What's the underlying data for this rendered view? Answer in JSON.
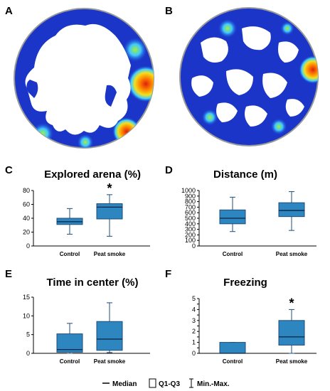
{
  "panels": {
    "heatmap_a": {
      "letter": "A"
    },
    "heatmap_b": {
      "letter": "B"
    }
  },
  "colors": {
    "box_fill": "#2e86c1",
    "box_stroke": "#1f4e79",
    "heat_low": "#1530c9",
    "heat_mid": "#40c8ff",
    "heat_high": "#e02010"
  },
  "chart_data": [
    {
      "letter": "C",
      "type": "box",
      "title": "Explored arena (%)",
      "categories": [
        "Control",
        "Peat smoke"
      ],
      "yticks": [
        0,
        20,
        40,
        60,
        80
      ],
      "ylim": [
        0,
        80
      ],
      "boxes": [
        {
          "min": 17,
          "q1": 31,
          "median": 35,
          "q3": 40,
          "max": 54,
          "significant": false
        },
        {
          "min": 14,
          "q1": 39,
          "median": 56,
          "q3": 61,
          "max": 74,
          "significant": true
        }
      ],
      "significance_mark": "*"
    },
    {
      "letter": "D",
      "type": "box",
      "title": "Distance (m)",
      "categories": [
        "Control",
        "Peat smoke"
      ],
      "yticks": [
        0,
        100,
        200,
        300,
        400,
        500,
        600,
        700,
        800,
        900,
        1000
      ],
      "ylim": [
        0,
        1000
      ],
      "boxes": [
        {
          "min": 260,
          "q1": 400,
          "median": 500,
          "q3": 650,
          "max": 880,
          "significant": false
        },
        {
          "min": 280,
          "q1": 530,
          "median": 640,
          "q3": 780,
          "max": 980,
          "significant": false
        }
      ]
    },
    {
      "letter": "E",
      "type": "box",
      "title": "Time in center (%)",
      "categories": [
        "Control",
        "Peat smoke"
      ],
      "yticks": [
        0,
        5,
        10,
        15
      ],
      "ylim": [
        0,
        15
      ],
      "boxes": [
        {
          "min": 0,
          "q1": 0.3,
          "median": 1,
          "q3": 5.2,
          "max": 8,
          "significant": false
        },
        {
          "min": 0.2,
          "q1": 0.8,
          "median": 3.8,
          "q3": 8.5,
          "max": 13.5,
          "significant": false
        }
      ]
    },
    {
      "letter": "F",
      "type": "box",
      "title": "Freezing",
      "categories": [
        "Control",
        "Peat smoke"
      ],
      "yticks": [
        0,
        0.5,
        1,
        1.5,
        2,
        2.5,
        3,
        3.5,
        4,
        4.5,
        5
      ],
      "ytick_labels": [
        "0",
        "",
        "1",
        "",
        "2",
        "",
        "3",
        "",
        "4",
        "",
        "5"
      ],
      "ylim": [
        0,
        5
      ],
      "boxes": [
        {
          "min": 0,
          "q1": 0,
          "median": 0,
          "q3": 1,
          "max": 1,
          "significant": false
        },
        {
          "min": 0,
          "q1": 0.75,
          "median": 1.5,
          "q3": 3,
          "max": 4,
          "significant": true
        }
      ],
      "significance_mark": "*"
    }
  ],
  "legend": {
    "median": "Median",
    "q1q3": "Q1-Q3",
    "minmax": "Min.-Max."
  }
}
